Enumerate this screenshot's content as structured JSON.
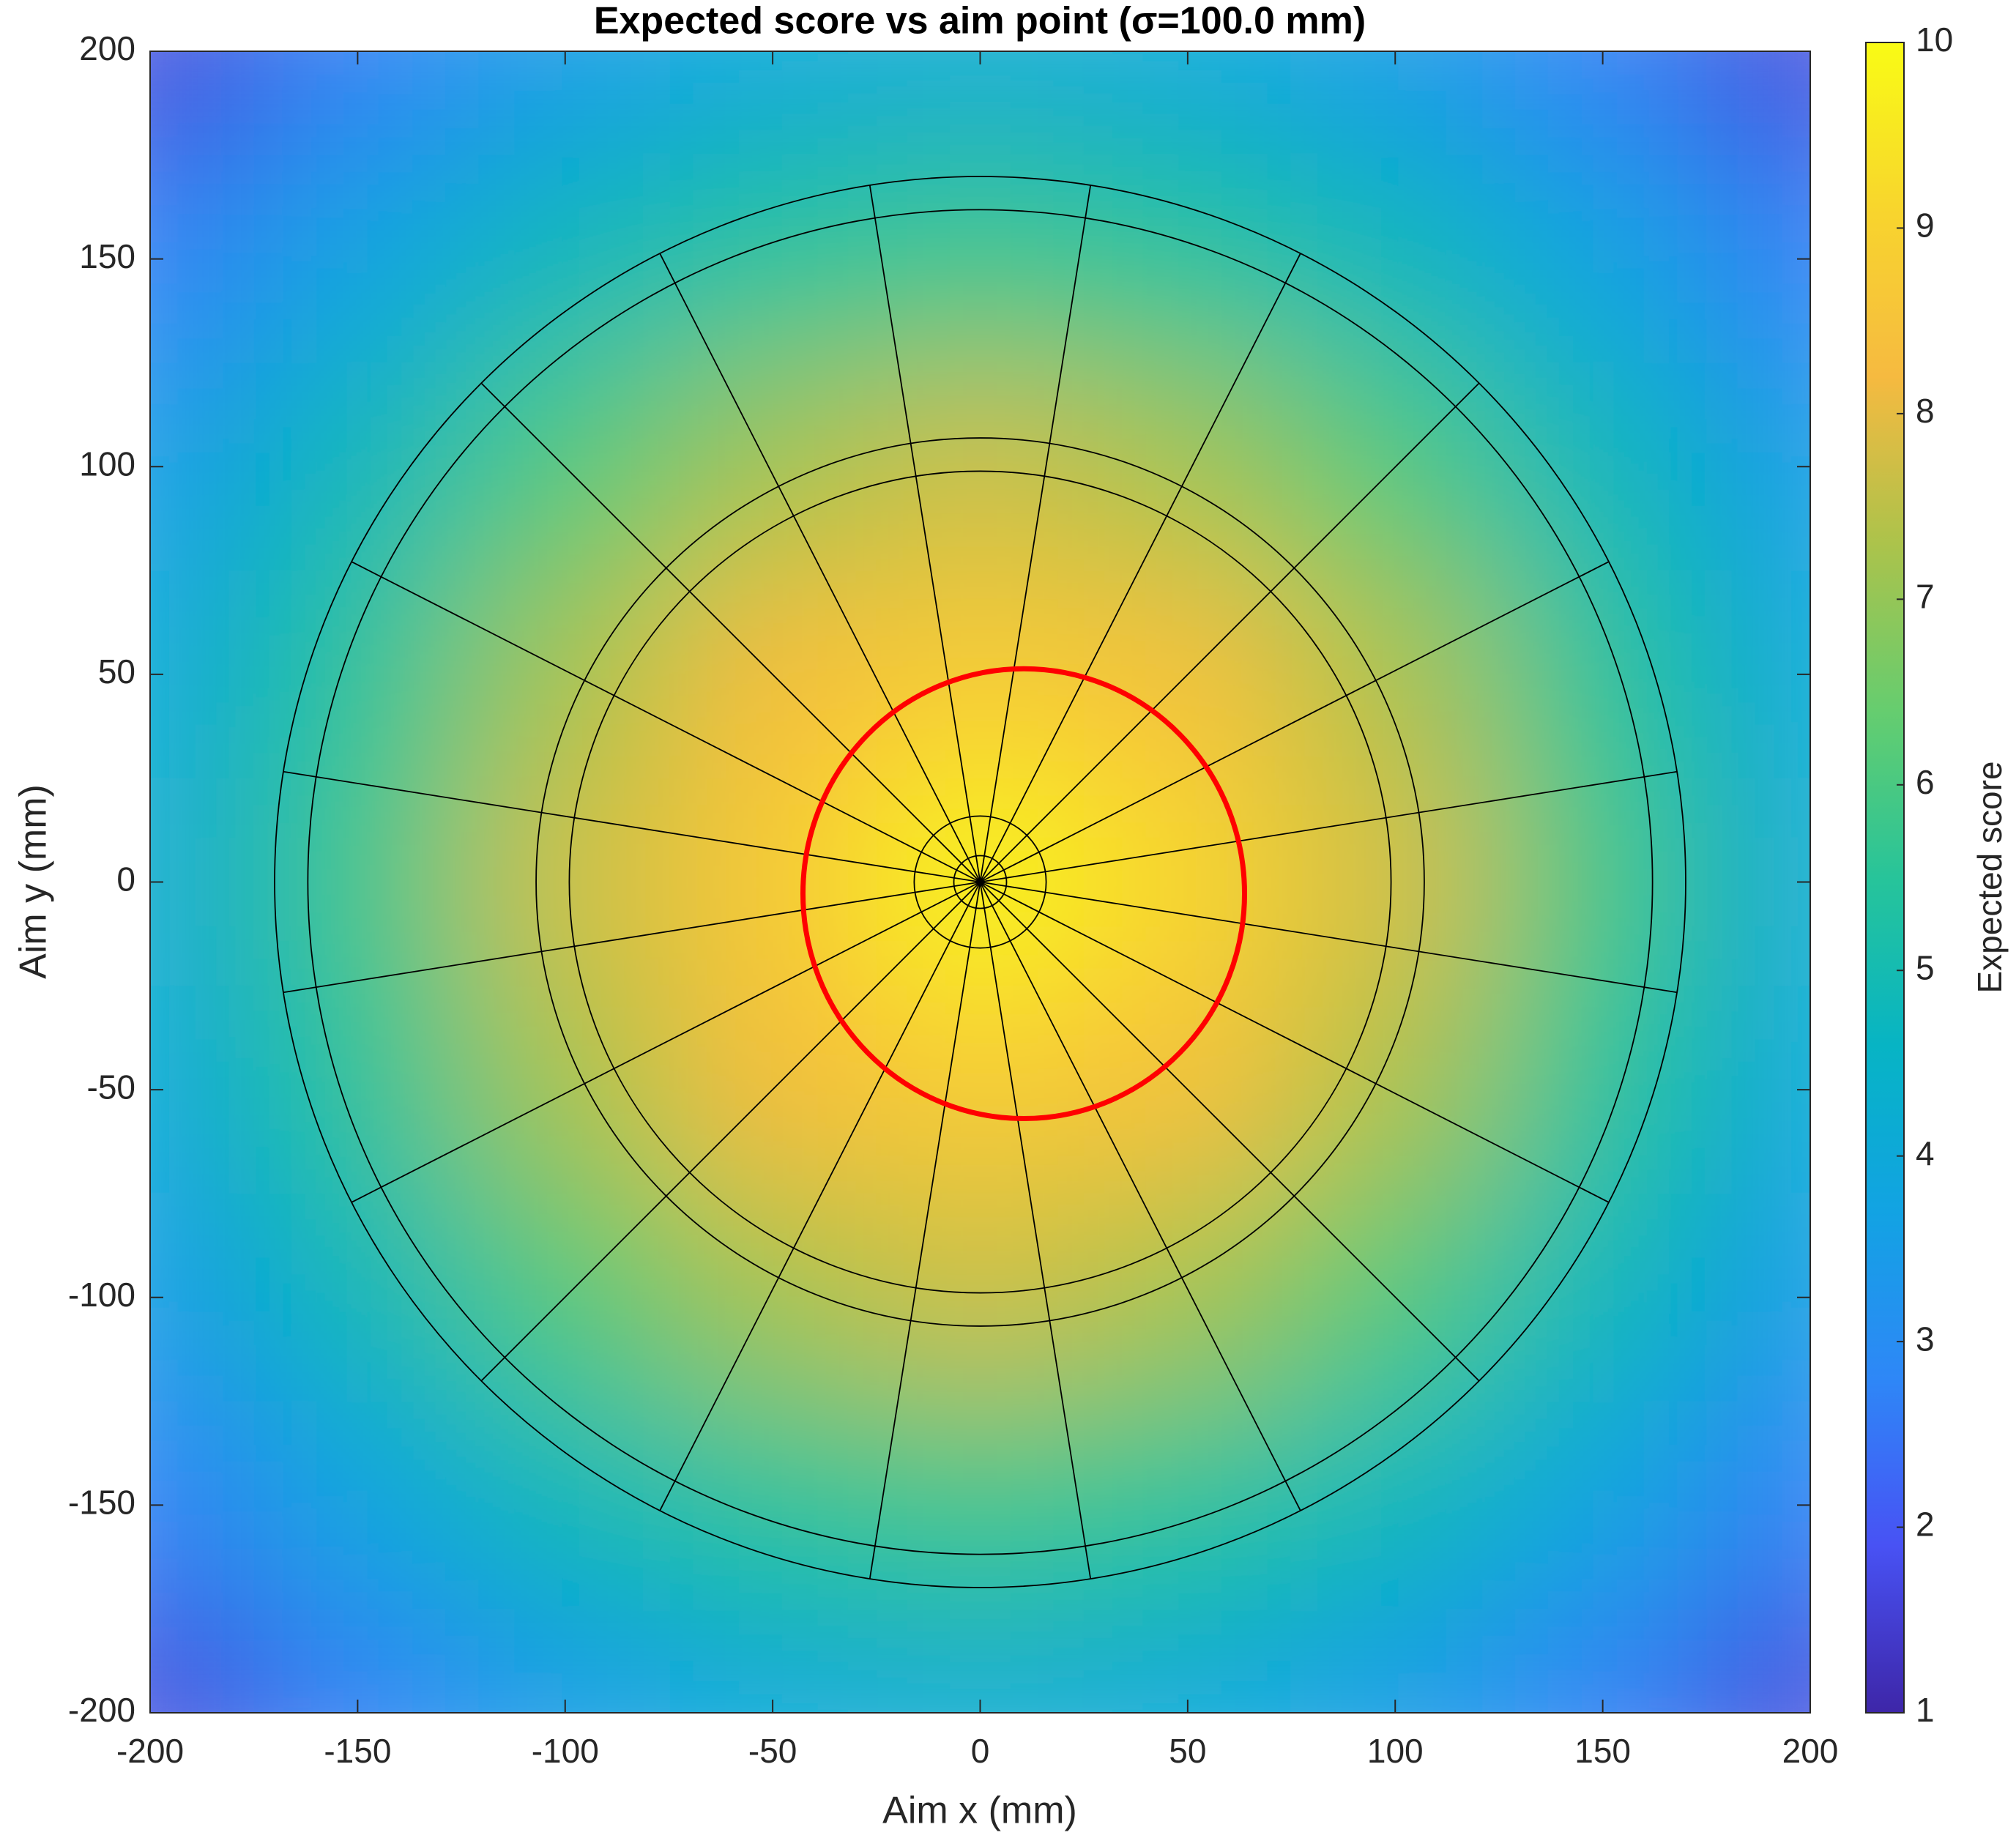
{
  "chart_data": {
    "type": "heatmap",
    "title": "Expected score vs aim point (σ=100.0 mm)",
    "xlabel": "Aim x (mm)",
    "ylabel": "Aim y (mm)",
    "colorbar_label": "Expected score",
    "colormap": "parula",
    "x": [
      -200,
      -150,
      -100,
      -50,
      0,
      50,
      100,
      150,
      200
    ],
    "y": [
      200,
      150,
      100,
      50,
      0,
      -50,
      -100,
      -150,
      -200
    ],
    "values": [
      [
        1.6,
        2.7,
        3.5,
        4.0,
        4.2,
        4.0,
        3.5,
        2.7,
        1.6
      ],
      [
        2.7,
        3.8,
        4.8,
        5.5,
        5.8,
        5.5,
        4.8,
        3.8,
        2.7
      ],
      [
        3.5,
        4.8,
        6.1,
        7.2,
        7.7,
        7.2,
        6.1,
        4.8,
        3.5
      ],
      [
        4.0,
        5.5,
        7.2,
        8.3,
        8.8,
        8.4,
        7.3,
        5.5,
        4.0
      ],
      [
        4.2,
        5.8,
        7.7,
        8.7,
        9.9,
        9.1,
        7.8,
        5.9,
        4.2
      ],
      [
        4.0,
        5.5,
        7.2,
        8.3,
        8.8,
        8.4,
        7.3,
        5.5,
        4.0
      ],
      [
        3.5,
        4.8,
        6.1,
        7.2,
        7.7,
        7.2,
        6.1,
        4.8,
        3.5
      ],
      [
        2.7,
        3.8,
        4.8,
        5.5,
        5.8,
        5.5,
        4.8,
        3.8,
        2.7
      ],
      [
        1.6,
        2.7,
        3.5,
        4.0,
        4.2,
        4.0,
        3.5,
        2.7,
        1.6
      ]
    ],
    "xlim": [
      -200,
      200
    ],
    "ylim": [
      -200,
      200
    ],
    "xticks": [
      -200,
      -150,
      -100,
      -50,
      0,
      50,
      100,
      150,
      200
    ],
    "yticks": [
      -200,
      -150,
      -100,
      -50,
      0,
      50,
      100,
      150,
      200
    ],
    "clim": [
      1,
      10
    ],
    "cticks": [
      1,
      2,
      3,
      4,
      5,
      6,
      7,
      8,
      9,
      10
    ],
    "contour": {
      "color": "#ff0000",
      "center": [
        10.5,
        -2.8
      ],
      "radius": [
        53.2,
        54.2
      ]
    }
  }
}
